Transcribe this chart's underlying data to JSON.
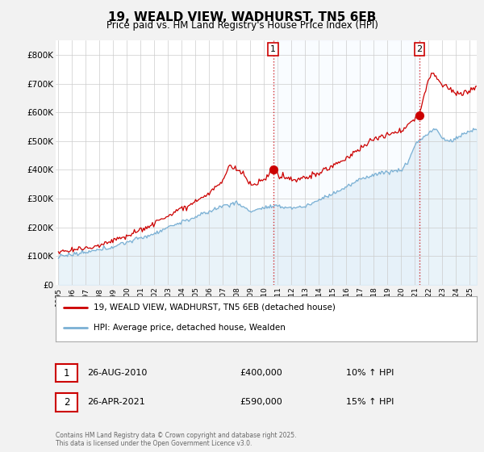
{
  "title": "19, WEALD VIEW, WADHURST, TN5 6EB",
  "subtitle": "Price paid vs. HM Land Registry's House Price Index (HPI)",
  "hpi_color": "#7ab0d4",
  "price_color": "#cc0000",
  "hpi_fill_color": "#d4e8f5",
  "background_color": "#f2f2f2",
  "plot_bg_color": "#ffffff",
  "shade_color": "#ddeeff",
  "ylim": [
    0,
    850000
  ],
  "yticks": [
    0,
    100000,
    200000,
    300000,
    400000,
    500000,
    600000,
    700000,
    800000
  ],
  "ytick_labels": [
    "£0",
    "£100K",
    "£200K",
    "£300K",
    "£400K",
    "£500K",
    "£600K",
    "£700K",
    "£800K"
  ],
  "legend_label_price": "19, WEALD VIEW, WADHURST, TN5 6EB (detached house)",
  "legend_label_hpi": "HPI: Average price, detached house, Wealden",
  "ann1_num": "1",
  "ann1_date": "26-AUG-2010",
  "ann1_price": "£400,000",
  "ann1_hpi": "10% ↑ HPI",
  "ann2_num": "2",
  "ann2_date": "26-APR-2021",
  "ann2_price": "£590,000",
  "ann2_hpi": "15% ↑ HPI",
  "footer": "Contains HM Land Registry data © Crown copyright and database right 2025.\nThis data is licensed under the Open Government Licence v3.0.",
  "marker1_x": 2010.65,
  "marker1_y": 400000,
  "marker2_x": 2021.32,
  "marker2_y": 590000,
  "xmin": 1994.8,
  "xmax": 2025.5
}
